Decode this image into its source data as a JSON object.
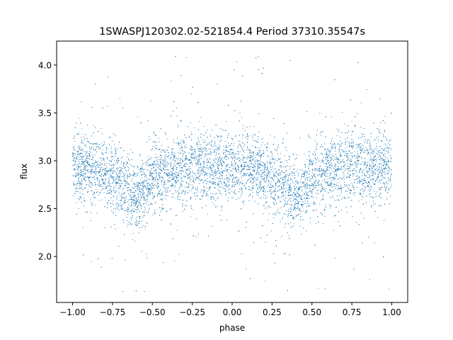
{
  "chart_data": {
    "type": "scatter",
    "title": "1SWASPJ120302.02-521854.4 Period 37310.35547s",
    "xlabel": "phase",
    "ylabel": "flux",
    "xlim": [
      -1.1,
      1.1
    ],
    "ylim": [
      1.52,
      4.25
    ],
    "xticks": [
      -1.0,
      -0.75,
      -0.5,
      -0.25,
      0.0,
      0.25,
      0.5,
      0.75,
      1.0
    ],
    "xtick_labels": [
      "−1.00",
      "−0.75",
      "−0.50",
      "−0.25",
      "0.00",
      "0.25",
      "0.50",
      "0.75",
      "1.00"
    ],
    "yticks": [
      2.0,
      2.5,
      3.0,
      3.5,
      4.0
    ],
    "ytick_labels": [
      "2.0",
      "2.5",
      "3.0",
      "3.5",
      "4.0"
    ],
    "grid": false,
    "marker_color": "#1f77b4",
    "series": [
      {
        "x_range": [
          -1.0,
          1.0
        ],
        "description_points": [
          [
            -1.0,
            2.92
          ],
          [
            -0.9,
            2.92
          ],
          [
            -0.8,
            2.9
          ],
          [
            -0.7,
            2.78
          ],
          [
            -0.65,
            2.7
          ],
          [
            -0.6,
            2.62
          ],
          [
            -0.55,
            2.68
          ],
          [
            -0.5,
            2.8
          ],
          [
            -0.4,
            2.88
          ],
          [
            -0.3,
            2.92
          ],
          [
            -0.2,
            2.93
          ],
          [
            -0.1,
            2.93
          ],
          [
            0.0,
            2.93
          ],
          [
            0.1,
            2.92
          ],
          [
            0.2,
            2.88
          ],
          [
            0.3,
            2.78
          ],
          [
            0.35,
            2.7
          ],
          [
            0.4,
            2.62
          ],
          [
            0.45,
            2.68
          ],
          [
            0.5,
            2.8
          ],
          [
            0.6,
            2.88
          ],
          [
            0.7,
            2.92
          ],
          [
            0.8,
            2.93
          ],
          [
            0.9,
            2.93
          ],
          [
            1.0,
            2.92
          ]
        ],
        "scatter_sd": 0.18,
        "outlier_range": [
          1.62,
          4.12
        ]
      }
    ]
  }
}
